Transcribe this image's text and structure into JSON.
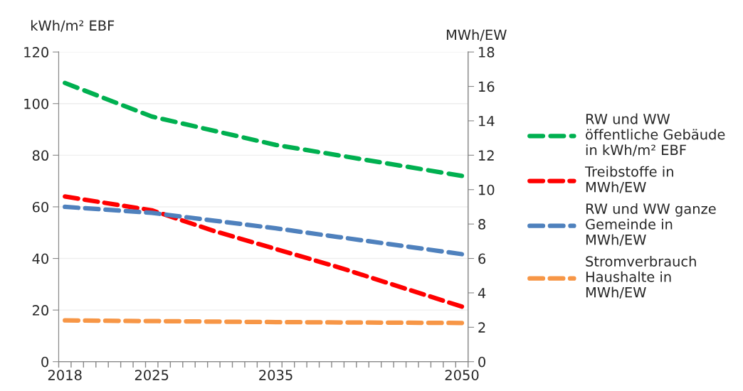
{
  "chart_data": {
    "type": "line",
    "ylabel": "kWh/m² EBF",
    "y2label": "MWh/EW",
    "xlim": [
      2017.5,
      2050.5
    ],
    "xticks": [
      {
        "value": 2017.5,
        "label": null
      },
      {
        "value": 2018.5,
        "label": null
      },
      {
        "value": 2019.5,
        "label": null
      },
      {
        "value": 2020.5,
        "label": null
      },
      {
        "value": 2021.5,
        "label": null
      },
      {
        "value": 2022.5,
        "label": null
      },
      {
        "value": 2023.5,
        "label": null
      },
      {
        "value": 2024.5,
        "label": null
      },
      {
        "value": 2025.5,
        "label": null
      },
      {
        "value": 2026.5,
        "label": null
      },
      {
        "value": 2027.5,
        "label": null
      },
      {
        "value": 2028.5,
        "label": null
      },
      {
        "value": 2029.5,
        "label": null
      },
      {
        "value": 2030.5,
        "label": null
      },
      {
        "value": 2031.5,
        "label": null
      },
      {
        "value": 2032.5,
        "label": null
      },
      {
        "value": 2033.5,
        "label": null
      },
      {
        "value": 2034.5,
        "label": null
      },
      {
        "value": 2035.5,
        "label": null
      },
      {
        "value": 2036.5,
        "label": null
      },
      {
        "value": 2037.5,
        "label": null
      },
      {
        "value": 2038.5,
        "label": null
      },
      {
        "value": 2039.5,
        "label": null
      },
      {
        "value": 2040.5,
        "label": null
      },
      {
        "value": 2041.5,
        "label": null
      },
      {
        "value": 2042.5,
        "label": null
      },
      {
        "value": 2043.5,
        "label": null
      },
      {
        "value": 2044.5,
        "label": null
      },
      {
        "value": 2045.5,
        "label": null
      },
      {
        "value": 2046.5,
        "label": null
      },
      {
        "value": 2047.5,
        "label": null
      },
      {
        "value": 2048.5,
        "label": null
      },
      {
        "value": 2049.5,
        "label": null
      },
      {
        "value": 2050.5,
        "label": null
      },
      2018,
      2025,
      2035,
      2050
    ],
    "ylim": [
      0,
      120
    ],
    "yticks": [
      0,
      20,
      40,
      60,
      80,
      100,
      120
    ],
    "y2lim": [
      0,
      18
    ],
    "y2ticks": [
      0,
      2,
      4,
      6,
      8,
      10,
      12,
      14,
      16,
      18
    ],
    "grid": "y",
    "legend": "right",
    "line_style": "dashed",
    "marker": "none",
    "series": [
      {
        "name": "RW und WW\nöffentliche Gebäude\nin kWh/m² EBF",
        "color": "#00b050",
        "x": [
          2018,
          2025,
          2030,
          2035,
          2040,
          2045,
          2050
        ],
        "values": [
          108,
          95,
          89.5,
          84,
          80,
          76,
          72
        ]
      },
      {
        "name": "Treibstoffe in\nMWh/EW",
        "color": "#ff0000",
        "axis": "y2",
        "x": [
          2018,
          2025,
          2030,
          2035,
          2040,
          2045,
          2050
        ],
        "values": [
          9.6,
          8.8,
          7.6,
          6.55,
          5.5,
          4.35,
          3.2
        ]
      },
      {
        "name": "RW und WW ganze\nGemeinde in\nMWh/EW",
        "color": "#4f81bd",
        "axis": "y2",
        "x": [
          2018,
          2025,
          2030,
          2035,
          2040,
          2045,
          2050
        ],
        "values": [
          9.0,
          8.65,
          8.2,
          7.75,
          7.25,
          6.75,
          6.25
        ]
      },
      {
        "name": "Stromverbrauch\nHaushalte in\nMWh/EW",
        "color": "#f79646",
        "axis": "y2",
        "x": [
          2018,
          2035,
          2050
        ],
        "values": [
          2.4,
          2.3,
          2.25
        ]
      }
    ]
  }
}
